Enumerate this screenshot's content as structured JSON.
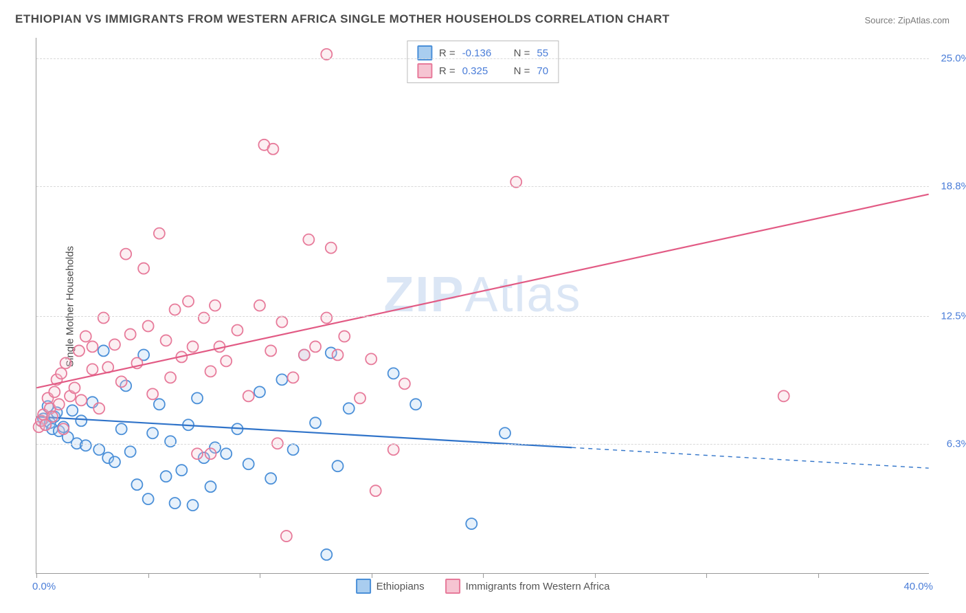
{
  "title": "ETHIOPIAN VS IMMIGRANTS FROM WESTERN AFRICA SINGLE MOTHER HOUSEHOLDS CORRELATION CHART",
  "source_label": "Source: ZipAtlas.com",
  "ylabel": "Single Mother Households",
  "watermark_bold": "ZIP",
  "watermark_light": "Atlas",
  "chart": {
    "type": "scatter",
    "background_color": "#ffffff",
    "grid_color": "#d8d8d8",
    "axis_color": "#999999",
    "xlim": [
      0,
      40
    ],
    "ylim": [
      0,
      26
    ],
    "xticks": [
      0,
      5,
      10,
      15,
      20,
      25,
      30,
      35
    ],
    "x_min_label": "0.0%",
    "x_max_label": "40.0%",
    "ytick_labels": [
      {
        "value": 6.3,
        "label": "6.3%"
      },
      {
        "value": 12.5,
        "label": "12.5%"
      },
      {
        "value": 18.8,
        "label": "18.8%"
      },
      {
        "value": 25.0,
        "label": "25.0%"
      }
    ],
    "marker_radius": 8,
    "marker_stroke_width": 1.8,
    "marker_fill_opacity": 0.28,
    "trendline_width": 2.2
  },
  "legend_top": {
    "r_label": "R = ",
    "n_label": "N = "
  },
  "series": [
    {
      "name": "Ethiopians",
      "color_stroke": "#4a8fd8",
      "color_fill": "#a9cdef",
      "trend_color": "#2f73c9",
      "R": "-0.136",
      "N": "55",
      "trend": {
        "x1": 0,
        "y1": 7.6,
        "x2_solid": 24,
        "y2_solid": 6.1,
        "x2": 40,
        "y2": 5.1
      },
      "points": [
        [
          0.2,
          7.4
        ],
        [
          0.3,
          7.5
        ],
        [
          0.4,
          7.2
        ],
        [
          0.5,
          8.1
        ],
        [
          0.6,
          7.3
        ],
        [
          0.7,
          7.0
        ],
        [
          0.8,
          7.6
        ],
        [
          0.9,
          7.8
        ],
        [
          1.0,
          6.9
        ],
        [
          1.2,
          7.1
        ],
        [
          1.4,
          6.6
        ],
        [
          1.6,
          7.9
        ],
        [
          1.8,
          6.3
        ],
        [
          2.0,
          7.4
        ],
        [
          2.2,
          6.2
        ],
        [
          2.5,
          8.3
        ],
        [
          2.8,
          6.0
        ],
        [
          3.0,
          10.8
        ],
        [
          3.2,
          5.6
        ],
        [
          3.5,
          5.4
        ],
        [
          3.8,
          7.0
        ],
        [
          4.0,
          9.1
        ],
        [
          4.2,
          5.9
        ],
        [
          4.5,
          4.3
        ],
        [
          4.8,
          10.6
        ],
        [
          5.0,
          3.6
        ],
        [
          5.2,
          6.8
        ],
        [
          5.5,
          8.2
        ],
        [
          5.8,
          4.7
        ],
        [
          6.0,
          6.4
        ],
        [
          6.2,
          3.4
        ],
        [
          6.5,
          5.0
        ],
        [
          6.8,
          7.2
        ],
        [
          7.0,
          3.3
        ],
        [
          7.2,
          8.5
        ],
        [
          7.5,
          5.6
        ],
        [
          7.8,
          4.2
        ],
        [
          8.0,
          6.1
        ],
        [
          8.5,
          5.8
        ],
        [
          9.0,
          7.0
        ],
        [
          9.5,
          5.3
        ],
        [
          10.0,
          8.8
        ],
        [
          10.5,
          4.6
        ],
        [
          11.0,
          9.4
        ],
        [
          11.5,
          6.0
        ],
        [
          12.0,
          10.6
        ],
        [
          12.5,
          7.3
        ],
        [
          13.0,
          0.9
        ],
        [
          13.2,
          10.7
        ],
        [
          14.0,
          8.0
        ],
        [
          16.0,
          9.7
        ],
        [
          17.0,
          8.2
        ],
        [
          19.5,
          2.4
        ],
        [
          21.0,
          6.8
        ],
        [
          13.5,
          5.2
        ]
      ]
    },
    {
      "name": "Immigrants from Western Africa",
      "color_stroke": "#e77a9a",
      "color_fill": "#f6c4d2",
      "trend_color": "#e25a84",
      "R": "0.325",
      "N": "70",
      "trend": {
        "x1": 0,
        "y1": 9.0,
        "x2_solid": 40,
        "y2_solid": 18.4,
        "x2": 40,
        "y2": 18.4
      },
      "points": [
        [
          0.1,
          7.1
        ],
        [
          0.2,
          7.4
        ],
        [
          0.3,
          7.7
        ],
        [
          0.4,
          7.2
        ],
        [
          0.5,
          8.5
        ],
        [
          0.6,
          8.0
        ],
        [
          0.7,
          7.6
        ],
        [
          0.8,
          8.8
        ],
        [
          0.9,
          9.4
        ],
        [
          1.0,
          8.2
        ],
        [
          1.1,
          9.7
        ],
        [
          1.2,
          7.0
        ],
        [
          1.3,
          10.2
        ],
        [
          1.5,
          8.6
        ],
        [
          1.7,
          9.0
        ],
        [
          1.9,
          10.8
        ],
        [
          2.0,
          8.4
        ],
        [
          2.2,
          11.5
        ],
        [
          2.5,
          9.9
        ],
        [
          2.5,
          11.0
        ],
        [
          2.8,
          8.0
        ],
        [
          3.0,
          12.4
        ],
        [
          3.2,
          10.0
        ],
        [
          3.5,
          11.1
        ],
        [
          3.8,
          9.3
        ],
        [
          4.0,
          15.5
        ],
        [
          4.2,
          11.6
        ],
        [
          4.5,
          10.2
        ],
        [
          4.8,
          14.8
        ],
        [
          5.0,
          12.0
        ],
        [
          5.2,
          8.7
        ],
        [
          5.5,
          16.5
        ],
        [
          5.8,
          11.3
        ],
        [
          6.0,
          9.5
        ],
        [
          6.2,
          12.8
        ],
        [
          6.5,
          10.5
        ],
        [
          6.8,
          13.2
        ],
        [
          7.0,
          11.0
        ],
        [
          7.2,
          5.8
        ],
        [
          7.5,
          12.4
        ],
        [
          7.8,
          9.8
        ],
        [
          8.0,
          13.0
        ],
        [
          8.5,
          10.3
        ],
        [
          9.0,
          11.8
        ],
        [
          9.5,
          8.6
        ],
        [
          10.0,
          13.0
        ],
        [
          10.2,
          20.8
        ],
        [
          10.5,
          10.8
        ],
        [
          10.6,
          20.6
        ],
        [
          11.0,
          12.2
        ],
        [
          11.2,
          1.8
        ],
        [
          11.5,
          9.5
        ],
        [
          12.0,
          10.6
        ],
        [
          12.2,
          16.2
        ],
        [
          12.5,
          11.0
        ],
        [
          13.0,
          25.2
        ],
        [
          13.0,
          12.4
        ],
        [
          13.2,
          15.8
        ],
        [
          13.5,
          10.6
        ],
        [
          13.8,
          11.5
        ],
        [
          14.5,
          8.5
        ],
        [
          15.0,
          10.4
        ],
        [
          15.2,
          4.0
        ],
        [
          16.0,
          6.0
        ],
        [
          16.5,
          9.2
        ],
        [
          21.5,
          19.0
        ],
        [
          7.8,
          5.8
        ],
        [
          10.8,
          6.3
        ],
        [
          33.5,
          8.6
        ],
        [
          8.2,
          11.0
        ]
      ]
    }
  ]
}
